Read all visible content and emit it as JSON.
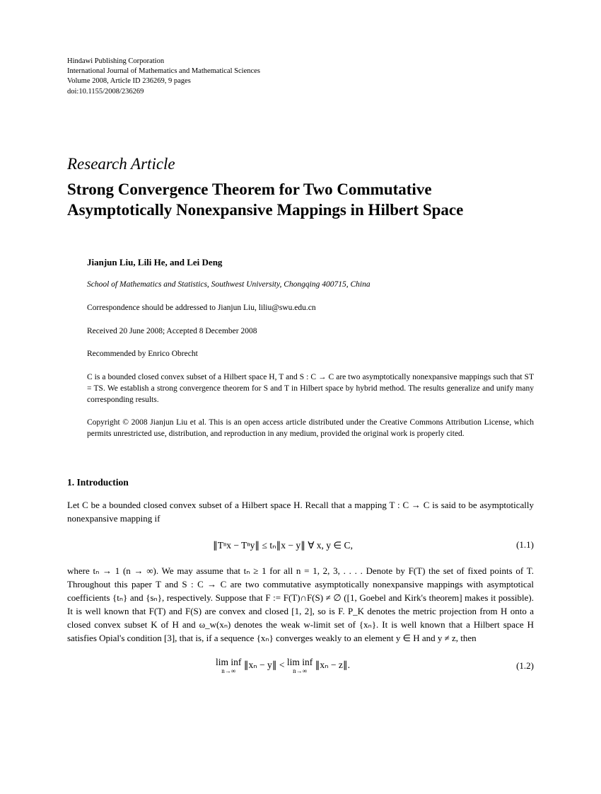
{
  "publisher": {
    "line1": "Hindawi Publishing Corporation",
    "line2": "International Journal of Mathematics and Mathematical Sciences",
    "line3": "Volume 2008, Article ID 236269, 9 pages",
    "line4": "doi:10.1155/2008/236269"
  },
  "article_type": "Research Article",
  "title": "Strong Convergence Theorem for Two Commutative Asymptotically Nonexpansive Mappings in Hilbert Space",
  "authors": "Jianjun Liu, Lili He, and Lei Deng",
  "affiliation": "School of Mathematics and Statistics, Southwest University, Chongqing 400715, China",
  "correspondence": "Correspondence should be addressed to Jianjun Liu, liliu@swu.edu.cn",
  "dates": "Received 20 June 2008; Accepted 8 December 2008",
  "recommended": "Recommended by Enrico Obrecht",
  "abstract": "C is a bounded closed convex subset of a Hilbert space H, T and S : C → C are two asymptotically nonexpansive mappings such that ST = TS. We establish a strong convergence theorem for S and T in Hilbert space by hybrid method. The results generalize and unify many corresponding results.",
  "copyright": "Copyright © 2008 Jianjun Liu et al. This is an open access article distributed under the Creative Commons Attribution License, which permits unrestricted use, distribution, and reproduction in any medium, provided the original work is properly cited.",
  "section1_heading": "1. Introduction",
  "para1": "Let C be a bounded closed convex subset of a Hilbert space H. Recall that a mapping T : C → C is said to be asymptotically nonexpansive mapping if",
  "eq1": "∥Tⁿx − Tⁿy∥ ≤ tₙ∥x − y∥   ∀ x, y ∈ C,",
  "eq1_num": "(1.1)",
  "para2": "where tₙ → 1 (n → ∞). We may assume that tₙ ≥ 1 for all n = 1, 2, 3, . . . . Denote by F(T) the set of fixed points of T. Throughout this paper T and S : C → C are two commutative asymptotically nonexpansive mappings with asymptotical coefficients {tₙ} and {sₙ}, respectively. Suppose that F := F(T)∩F(S) ≠ ∅ ([1,  Goebel and Kirk's theorem] makes it possible). It is well known that F(T) and F(S) are convex and closed [1, 2], so is F. P_K denotes the metric projection from H onto a closed convex subset K of H and ω_w(xₙ) denotes the weak w-limit set of {xₙ}. It is well known that a Hilbert space H satisfies Opial's condition [3], that is, if a sequence {xₙ} converges weakly to an element y ∈ H and y ≠ z, then",
  "eq2_left": "lim inf",
  "eq2_left_sub": "n→∞",
  "eq2_mid1": "∥xₙ − y∥ < ",
  "eq2_right": "lim inf",
  "eq2_right_sub": "n→∞",
  "eq2_mid2": "∥xₙ − z∥.",
  "eq2_num": "(1.2)"
}
